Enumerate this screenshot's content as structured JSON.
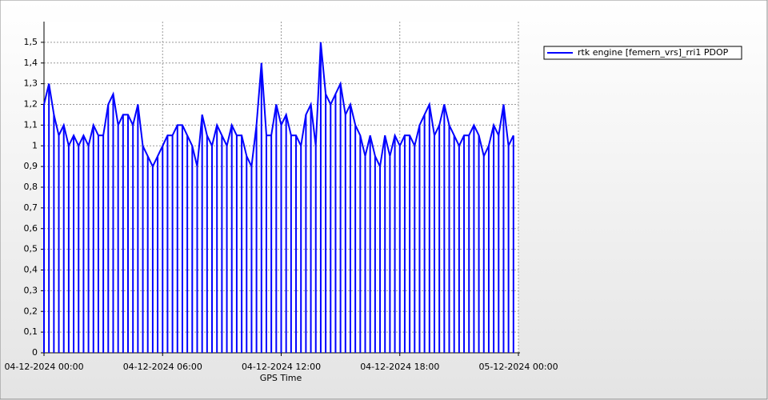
{
  "chart_data": {
    "type": "line",
    "x_label": "GPS Time",
    "drop_lines": true,
    "grid": true,
    "legend": "upper-right",
    "x": [
      "2024-12-04 00:00",
      "2024-12-04 00:15",
      "2024-12-04 00:30",
      "2024-12-04 00:45",
      "2024-12-04 01:00",
      "2024-12-04 01:15",
      "2024-12-04 01:30",
      "2024-12-04 01:45",
      "2024-12-04 02:00",
      "2024-12-04 02:15",
      "2024-12-04 02:30",
      "2024-12-04 02:45",
      "2024-12-04 03:00",
      "2024-12-04 03:15",
      "2024-12-04 03:30",
      "2024-12-04 03:45",
      "2024-12-04 04:00",
      "2024-12-04 04:15",
      "2024-12-04 04:30",
      "2024-12-04 04:45",
      "2024-12-04 05:00",
      "2024-12-04 05:15",
      "2024-12-04 05:30",
      "2024-12-04 05:45",
      "2024-12-04 06:00",
      "2024-12-04 06:15",
      "2024-12-04 06:30",
      "2024-12-04 06:45",
      "2024-12-04 07:00",
      "2024-12-04 07:15",
      "2024-12-04 07:30",
      "2024-12-04 07:45",
      "2024-12-04 08:00",
      "2024-12-04 08:15",
      "2024-12-04 08:30",
      "2024-12-04 08:45",
      "2024-12-04 09:00",
      "2024-12-04 09:15",
      "2024-12-04 09:30",
      "2024-12-04 09:45",
      "2024-12-04 10:00",
      "2024-12-04 10:15",
      "2024-12-04 10:30",
      "2024-12-04 10:45",
      "2024-12-04 11:00",
      "2024-12-04 11:15",
      "2024-12-04 11:30",
      "2024-12-04 11:45",
      "2024-12-04 12:00",
      "2024-12-04 12:15",
      "2024-12-04 12:30",
      "2024-12-04 12:45",
      "2024-12-04 13:00",
      "2024-12-04 13:15",
      "2024-12-04 13:30",
      "2024-12-04 13:45",
      "2024-12-04 14:00",
      "2024-12-04 14:15",
      "2024-12-04 14:30",
      "2024-12-04 14:45",
      "2024-12-04 15:00",
      "2024-12-04 15:15",
      "2024-12-04 15:30",
      "2024-12-04 15:45",
      "2024-12-04 16:00",
      "2024-12-04 16:15",
      "2024-12-04 16:30",
      "2024-12-04 16:45",
      "2024-12-04 17:00",
      "2024-12-04 17:15",
      "2024-12-04 17:30",
      "2024-12-04 17:45",
      "2024-12-04 18:00",
      "2024-12-04 18:15",
      "2024-12-04 18:30",
      "2024-12-04 18:45",
      "2024-12-04 19:00",
      "2024-12-04 19:15",
      "2024-12-04 19:30",
      "2024-12-04 19:45",
      "2024-12-04 20:00",
      "2024-12-04 20:15",
      "2024-12-04 20:30",
      "2024-12-04 20:45",
      "2024-12-04 21:00",
      "2024-12-04 21:15",
      "2024-12-04 21:30",
      "2024-12-04 21:45",
      "2024-12-04 22:00",
      "2024-12-04 22:15",
      "2024-12-04 22:30",
      "2024-12-04 22:45",
      "2024-12-04 23:00",
      "2024-12-04 23:15",
      "2024-12-04 23:30",
      "2024-12-04 23:45"
    ],
    "series": [
      {
        "name": "rtk engine [femern_vrs]_rri1 PDOP",
        "color": "#0000ff",
        "values": [
          1.2,
          1.3,
          1.15,
          1.05,
          1.1,
          1.0,
          1.05,
          1.0,
          1.05,
          1.0,
          1.1,
          1.05,
          1.05,
          1.2,
          1.25,
          1.1,
          1.15,
          1.15,
          1.1,
          1.2,
          1.0,
          0.95,
          0.9,
          0.95,
          1.0,
          1.05,
          1.05,
          1.1,
          1.1,
          1.05,
          1.0,
          0.9,
          1.15,
          1.05,
          1.0,
          1.1,
          1.05,
          1.0,
          1.1,
          1.05,
          1.05,
          0.95,
          0.9,
          1.1,
          1.4,
          1.05,
          1.05,
          1.2,
          1.1,
          1.15,
          1.05,
          1.05,
          1.0,
          1.15,
          1.2,
          1.0,
          1.5,
          1.25,
          1.2,
          1.25,
          1.3,
          1.15,
          1.2,
          1.1,
          1.05,
          0.95,
          1.05,
          0.95,
          0.9,
          1.05,
          0.95,
          1.05,
          1.0,
          1.05,
          1.05,
          1.0,
          1.1,
          1.15,
          1.2,
          1.05,
          1.1,
          1.2,
          1.1,
          1.05,
          1.0,
          1.05,
          1.05,
          1.1,
          1.05,
          0.95,
          1.0,
          1.1,
          1.05,
          1.2,
          1.0,
          1.05
        ]
      }
    ],
    "xlim": [
      "2024-12-04 00:00",
      "2024-12-05 00:00"
    ],
    "xticks": [
      {
        "value": "2024-12-04 00:00",
        "label": "04-12-2024 00:00"
      },
      {
        "value": "2024-12-04 06:00",
        "label": "04-12-2024 06:00"
      },
      {
        "value": "2024-12-04 12:00",
        "label": "04-12-2024 12:00"
      },
      {
        "value": "2024-12-04 18:00",
        "label": "04-12-2024 18:00"
      },
      {
        "value": "2024-12-05 00:00",
        "label": "05-12-2024 00:00"
      }
    ],
    "ylim": [
      0,
      1.6
    ],
    "yticks": [
      0,
      {
        "value": 0.1,
        "label": "0,1"
      },
      {
        "value": 0.2,
        "label": "0,2"
      },
      {
        "value": 0.3,
        "label": "0,3"
      },
      {
        "value": 0.4,
        "label": "0,4"
      },
      {
        "value": 0.5,
        "label": "0,5"
      },
      {
        "value": 0.6,
        "label": "0,6"
      },
      {
        "value": 0.7,
        "label": "0,7"
      },
      {
        "value": 0.8,
        "label": "0,8"
      },
      {
        "value": 0.9,
        "label": "0,9"
      },
      1,
      {
        "value": 1.1,
        "label": "1,1"
      },
      {
        "value": 1.2,
        "label": "1,2"
      },
      {
        "value": 1.3,
        "label": "1,3"
      },
      {
        "value": 1.4,
        "label": "1,4"
      },
      {
        "value": 1.5,
        "label": "1,5"
      }
    ]
  }
}
